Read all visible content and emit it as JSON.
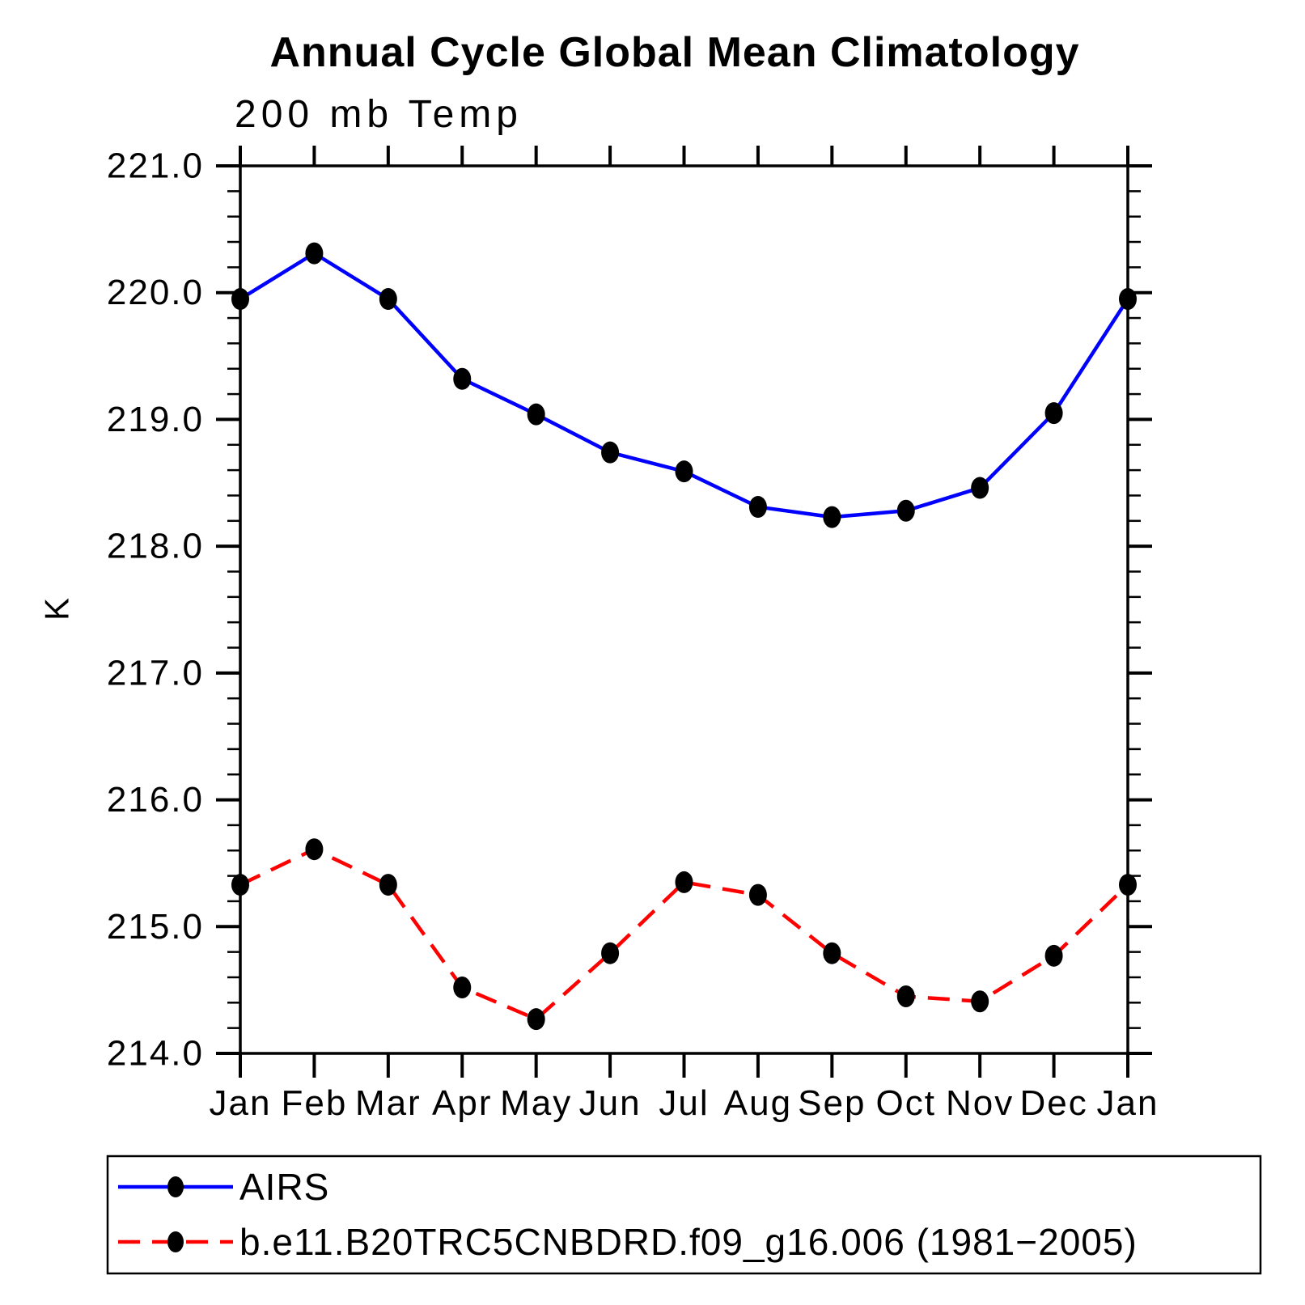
{
  "chart_data": {
    "type": "line",
    "title": "Annual Cycle Global Mean Climatology",
    "subtitle": "200 mb Temp",
    "ylabel": "K",
    "xlabel": "",
    "categories": [
      "Jan",
      "Feb",
      "Mar",
      "Apr",
      "May",
      "Jun",
      "Jul",
      "Aug",
      "Sep",
      "Oct",
      "Nov",
      "Dec",
      "Jan"
    ],
    "ylim": [
      214.0,
      221.0
    ],
    "ytick_interval": 1.0,
    "yminor_interval": 0.2,
    "ytick_labels": [
      "221.0",
      "220.0",
      "219.0",
      "218.0",
      "217.0",
      "216.0",
      "215.0",
      "214.0"
    ],
    "grid": "off",
    "legend_position": "bottom-left-box",
    "series": [
      {
        "name": "AIRS",
        "line_style": "solid",
        "line_color": "#0000ff",
        "marker": "filled-circle",
        "marker_color": "#000000",
        "values": [
          219.95,
          220.31,
          219.95,
          219.32,
          219.04,
          218.74,
          218.59,
          218.31,
          218.23,
          218.28,
          218.46,
          219.05,
          219.95
        ]
      },
      {
        "name": "b.e11.B20TRC5CNBDRD.f09_g16.006 (1981−2005)",
        "line_style": "dashed",
        "line_color": "#ff0000",
        "marker": "filled-circle",
        "marker_color": "#000000",
        "values": [
          215.33,
          215.61,
          215.33,
          214.52,
          214.27,
          214.79,
          215.35,
          215.25,
          214.79,
          214.45,
          214.41,
          214.77,
          215.33
        ]
      }
    ],
    "colors": {
      "axis": "#000000",
      "text": "#000000",
      "background": "#ffffff"
    }
  }
}
